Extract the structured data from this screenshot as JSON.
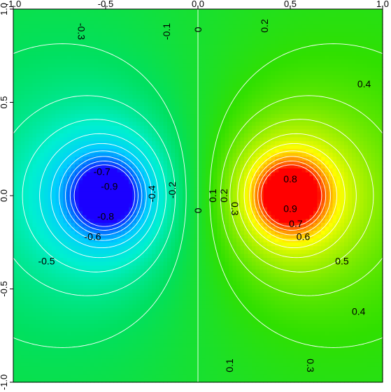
{
  "chart_data": {
    "type": "heatmap",
    "title": "",
    "xlabel": "",
    "ylabel": "",
    "xlim": [
      -1.0,
      1.0
    ],
    "ylim": [
      -1.0,
      1.0
    ],
    "x_ticks": [
      -1.0,
      -0.5,
      0.0,
      0.5,
      1.0
    ],
    "x_tick_labels": [
      "-1.0",
      "-0.5",
      "0.0",
      "0.5",
      "1.0"
    ],
    "y_ticks": [
      -1.0,
      -0.5,
      0.0,
      0.5,
      1.0
    ],
    "y_tick_labels": [
      "-1.0",
      "-0.5",
      "0.0",
      "0.5",
      "1.0"
    ],
    "x_axis_position": "top",
    "y_axis_position": "left",
    "field": {
      "description_free": true,
      "minimum": {
        "x": -0.5,
        "y": 0.0,
        "value": -1.0
      },
      "maximum": {
        "x": 0.5,
        "y": 0.0,
        "value": 1.0
      }
    },
    "colormap": [
      "#1b00ff",
      "#0066ff",
      "#00ccff",
      "#00f0d0",
      "#00e060",
      "#30e000",
      "#a0f000",
      "#ffff00",
      "#ff8000",
      "#ff0000"
    ],
    "contour_color": "#ffffff",
    "contour_levels": [
      -0.9,
      -0.8,
      -0.7,
      -0.6,
      -0.5,
      -0.4,
      -0.3,
      -0.2,
      -0.1,
      0,
      0.1,
      0.2,
      0.3,
      0.4,
      0.5,
      0.6,
      0.7,
      0.8,
      0.9
    ],
    "contour_labels": [
      {
        "text": "-0.3",
        "x": -0.63,
        "y": 0.88,
        "rotate": 90
      },
      {
        "text": "-0.1",
        "x": -0.17,
        "y": 0.88,
        "rotate": -90
      },
      {
        "text": "0",
        "x": 0.0,
        "y": 0.89,
        "rotate": -90
      },
      {
        "text": "0.2",
        "x": 0.36,
        "y": 0.91,
        "rotate": -90
      },
      {
        "text": "0.4",
        "x": 0.9,
        "y": 0.6,
        "rotate": 0
      },
      {
        "text": "-0.7",
        "x": -0.52,
        "y": 0.13,
        "rotate": 0
      },
      {
        "text": "-0.9",
        "x": -0.48,
        "y": 0.05,
        "rotate": 0
      },
      {
        "text": "-0.8",
        "x": -0.5,
        "y": -0.11,
        "rotate": 0
      },
      {
        "text": "-0.6",
        "x": -0.57,
        "y": -0.22,
        "rotate": 0
      },
      {
        "text": "-0.5",
        "x": -0.82,
        "y": -0.35,
        "rotate": 0
      },
      {
        "text": "-0.4",
        "x": -0.25,
        "y": 0.01,
        "rotate": -90
      },
      {
        "text": "-0.2",
        "x": -0.14,
        "y": 0.03,
        "rotate": -90
      },
      {
        "text": "0",
        "x": 0.0,
        "y": -0.08,
        "rotate": -90
      },
      {
        "text": "0.1",
        "x": 0.08,
        "y": 0.0,
        "rotate": -90
      },
      {
        "text": "0.2",
        "x": 0.14,
        "y": 0.0,
        "rotate": -90
      },
      {
        "text": "0.3",
        "x": 0.2,
        "y": -0.07,
        "rotate": 90
      },
      {
        "text": "0.8",
        "x": 0.5,
        "y": 0.09,
        "rotate": 0
      },
      {
        "text": "0.9",
        "x": 0.5,
        "y": -0.07,
        "rotate": 0
      },
      {
        "text": "0.7",
        "x": 0.53,
        "y": -0.15,
        "rotate": 0
      },
      {
        "text": "0.6",
        "x": 0.57,
        "y": -0.22,
        "rotate": 0
      },
      {
        "text": "0.5",
        "x": 0.78,
        "y": -0.35,
        "rotate": 0
      },
      {
        "text": "0.4",
        "x": 0.87,
        "y": -0.62,
        "rotate": 0
      },
      {
        "text": "0.1",
        "x": 0.17,
        "y": -0.91,
        "rotate": -90
      },
      {
        "text": "0.3",
        "x": 0.61,
        "y": -0.91,
        "rotate": 90
      }
    ]
  }
}
